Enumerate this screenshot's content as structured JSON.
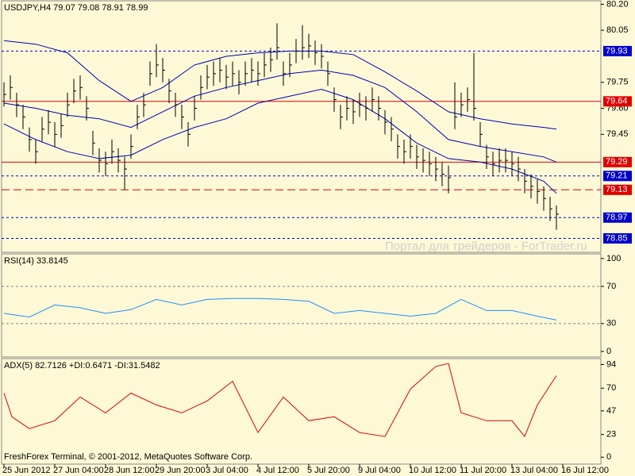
{
  "chart_data": [
    {
      "type": "ohlc",
      "title": "USDJPY,H4  79.07 79.08 78.91 78.99",
      "color": "#000000",
      "x": [
        0,
        1,
        2,
        3,
        4,
        5,
        6,
        7,
        8,
        9,
        10,
        11,
        12,
        13,
        14,
        15,
        16,
        17,
        18,
        19,
        20,
        21,
        22,
        23,
        24,
        25,
        26,
        27,
        28,
        29,
        30,
        31,
        32,
        33,
        34,
        35,
        36,
        37,
        38,
        39,
        40,
        41,
        42,
        43,
        44,
        45,
        46,
        47,
        48,
        49,
        50,
        51,
        52,
        53,
        54,
        55,
        56,
        57,
        58,
        59,
        60,
        61,
        62,
        63,
        64,
        65,
        66,
        67,
        68,
        69,
        70,
        71,
        72,
        73,
        74,
        75,
        76,
        77,
        78,
        79,
        80,
        81,
        82,
        83,
        84,
        85,
        86,
        87
      ],
      "high": [
        79.75,
        79.79,
        79.69,
        79.62,
        79.49,
        79.42,
        79.55,
        79.59,
        79.52,
        79.57,
        79.69,
        79.77,
        79.79,
        79.67,
        79.47,
        79.37,
        79.35,
        79.42,
        79.37,
        79.32,
        79.45,
        79.62,
        79.69,
        79.87,
        79.97,
        79.89,
        79.77,
        79.69,
        79.62,
        79.52,
        79.67,
        79.79,
        79.85,
        79.87,
        79.89,
        79.85,
        79.87,
        79.82,
        79.87,
        79.89,
        79.87,
        79.92,
        79.95,
        80.09,
        79.87,
        79.92,
        80.0,
        80.08,
        80.03,
        79.99,
        79.97,
        79.87,
        79.72,
        79.62,
        79.67,
        79.65,
        79.69,
        79.67,
        79.72,
        79.67,
        79.59,
        79.55,
        79.45,
        79.42,
        79.45,
        79.39,
        79.37,
        79.35,
        79.32,
        79.29,
        79.27,
        79.75,
        79.69,
        79.72,
        79.92,
        79.52,
        79.39,
        79.35,
        79.37,
        79.37,
        79.35,
        79.32,
        79.25,
        79.22,
        79.19,
        79.15,
        79.09,
        79.04
      ],
      "low": [
        79.61,
        79.65,
        79.55,
        79.48,
        79.35,
        79.28,
        79.41,
        79.45,
        79.38,
        79.43,
        79.55,
        79.63,
        79.65,
        79.53,
        79.33,
        79.23,
        79.21,
        79.28,
        79.23,
        79.13,
        79.31,
        79.48,
        79.55,
        79.73,
        79.78,
        79.75,
        79.63,
        79.55,
        79.48,
        79.38,
        79.53,
        79.65,
        79.71,
        79.73,
        79.75,
        79.71,
        79.73,
        79.68,
        79.73,
        79.75,
        79.73,
        79.78,
        79.81,
        79.88,
        79.73,
        79.78,
        79.86,
        79.88,
        79.89,
        79.85,
        79.83,
        79.73,
        79.58,
        79.48,
        79.53,
        79.51,
        79.55,
        79.53,
        79.58,
        79.53,
        79.45,
        79.41,
        79.31,
        79.28,
        79.31,
        79.25,
        79.23,
        79.21,
        79.18,
        79.15,
        79.11,
        79.48,
        79.55,
        79.58,
        79.53,
        79.38,
        79.25,
        79.21,
        79.23,
        79.23,
        79.21,
        79.18,
        79.11,
        79.08,
        79.05,
        79.01,
        78.95,
        78.9
      ],
      "close": [
        79.68,
        79.72,
        79.62,
        79.55,
        79.42,
        79.35,
        79.48,
        79.52,
        79.45,
        79.5,
        79.62,
        79.7,
        79.72,
        79.6,
        79.4,
        79.3,
        79.28,
        79.35,
        79.3,
        79.25,
        79.38,
        79.55,
        79.62,
        79.8,
        79.85,
        79.82,
        79.7,
        79.62,
        79.55,
        79.45,
        79.6,
        79.72,
        79.78,
        79.8,
        79.82,
        79.78,
        79.8,
        79.75,
        79.8,
        79.82,
        79.8,
        79.85,
        79.88,
        79.95,
        79.8,
        79.85,
        79.93,
        79.95,
        79.96,
        79.92,
        79.9,
        79.8,
        79.65,
        79.55,
        79.6,
        79.58,
        79.62,
        79.6,
        79.65,
        79.6,
        79.52,
        79.48,
        79.38,
        79.35,
        79.38,
        79.32,
        79.3,
        79.28,
        79.25,
        79.22,
        79.2,
        79.55,
        79.62,
        79.65,
        79.6,
        79.45,
        79.32,
        79.28,
        79.3,
        79.3,
        79.28,
        79.25,
        79.18,
        79.15,
        79.12,
        79.08,
        79.02,
        78.99
      ],
      "bands": [
        {
          "color": "#0000b4",
          "x": [
            0,
            5,
            10,
            15,
            20,
            25,
            30,
            35,
            40,
            45,
            50,
            55,
            60,
            65,
            70,
            75,
            80,
            85,
            87
          ],
          "values": [
            79.99,
            79.97,
            79.92,
            79.76,
            79.64,
            79.72,
            79.85,
            79.9,
            79.92,
            79.93,
            79.93,
            79.91,
            79.81,
            79.7,
            79.58,
            79.54,
            79.51,
            79.49,
            79.48
          ]
        },
        {
          "color": "#0000b4",
          "x": [
            0,
            5,
            10,
            15,
            20,
            25,
            30,
            35,
            40,
            45,
            50,
            55,
            60,
            65,
            70,
            75,
            80,
            85,
            87
          ],
          "values": [
            79.63,
            79.6,
            79.56,
            79.54,
            79.49,
            79.58,
            79.67,
            79.72,
            79.76,
            79.8,
            79.82,
            79.79,
            79.72,
            79.58,
            79.42,
            79.38,
            79.35,
            79.32,
            79.29
          ]
        },
        {
          "color": "#0000b4",
          "x": [
            0,
            5,
            10,
            15,
            20,
            25,
            30,
            35,
            40,
            45,
            50,
            55,
            60,
            65,
            70,
            75,
            80,
            85,
            87
          ],
          "values": [
            79.51,
            79.42,
            79.35,
            79.31,
            79.33,
            79.42,
            79.49,
            79.54,
            79.63,
            79.67,
            79.71,
            79.65,
            79.54,
            79.4,
            79.31,
            79.29,
            79.25,
            79.18,
            79.11
          ]
        }
      ],
      "levels": [
        {
          "value": 79.93,
          "color": "#0000cc",
          "style": "dashed"
        },
        {
          "value": 79.64,
          "color": "#e00000",
          "style": "solid"
        },
        {
          "value": 79.29,
          "color": "#e00000",
          "style": "solid"
        },
        {
          "value": 79.21,
          "color": "#0000cc",
          "style": "dashed"
        },
        {
          "value": 79.13,
          "color": "#e00000",
          "style": "longdash"
        },
        {
          "value": 78.97,
          "color": "#0000cc",
          "style": "dashed"
        },
        {
          "value": 78.85,
          "color": "#0000cc",
          "style": "dashed"
        }
      ],
      "xlim": [
        -0.375,
        94
      ],
      "ylim": [
        78.77,
        80.22
      ],
      "yticks": [
        {
          "value": 80.2,
          "label": "80.20"
        },
        {
          "value": 80.05,
          "label": "80.05"
        },
        {
          "value": 79.75,
          "label": "79.75"
        },
        {
          "value": 79.6,
          "label": "79.60"
        },
        {
          "value": 79.45,
          "label": "79.45"
        }
      ],
      "xticks": [
        {
          "value": 0,
          "label": "25 Jun 2012"
        },
        {
          "value": 8,
          "label": "27 Jun 04:00"
        },
        {
          "value": 16,
          "label": "28 Jun 12:00"
        },
        {
          "value": 24,
          "label": "29 Jun 20:00"
        },
        {
          "value": 32,
          "label": "3 Jul 04:00"
        },
        {
          "value": 40,
          "label": "4 Jul 12:00"
        },
        {
          "value": 48,
          "label": "5 Jul 20:00"
        },
        {
          "value": 56,
          "label": "9 Jul 04:00"
        },
        {
          "value": 64,
          "label": "10 Jul 12:00"
        },
        {
          "value": 72,
          "label": "11 Jul 20:00"
        },
        {
          "value": 80,
          "label": "13 Jul 04:00"
        },
        {
          "value": 88,
          "label": "16 Jul 12:00"
        }
      ]
    },
    {
      "type": "line",
      "title": "RSI(14) 33.8145",
      "color": "#1e90ff",
      "x": [
        0,
        4,
        8,
        12,
        16,
        20,
        24,
        28,
        32,
        36,
        40,
        44,
        48,
        52,
        56,
        60,
        64,
        68,
        72,
        76,
        80,
        84,
        87
      ],
      "values": [
        41,
        37,
        50,
        47,
        41,
        45,
        56,
        50,
        56,
        57,
        57,
        56,
        54,
        41,
        44,
        41,
        38,
        41,
        56,
        44,
        44,
        38,
        33.81
      ],
      "levels": [
        70,
        30
      ],
      "xlim": [
        -0.375,
        94
      ],
      "ylim": [
        -6,
        105
      ],
      "yticks": [
        100,
        70,
        30,
        0
      ]
    },
    {
      "type": "line",
      "title": "ADX(5) 82.7126 +DI:0.6471 -DI:31.5482",
      "color": "#e00000",
      "x": [
        0,
        1.25,
        4,
        8,
        12,
        16,
        20,
        24,
        28,
        32,
        36,
        40,
        44,
        48,
        52,
        56,
        60,
        64,
        68,
        70,
        72,
        76,
        80,
        82,
        84,
        87
      ],
      "values": [
        65,
        41,
        29,
        37,
        61,
        45,
        65,
        53,
        45,
        57,
        77,
        25,
        61,
        37,
        41,
        25,
        21,
        69,
        92,
        95,
        45,
        37,
        37,
        21,
        53,
        82.71
      ],
      "xlim": [
        -0.375,
        94
      ],
      "ylim": [
        -7,
        100
      ],
      "yticks": [
        94,
        70,
        47,
        23,
        0
      ]
    }
  ],
  "footer": "FreshForex Terminal, © 2001-2012, MetaQuotes Software Corp.",
  "watermark": "Портал для трейдеров - ForTrader.ru"
}
